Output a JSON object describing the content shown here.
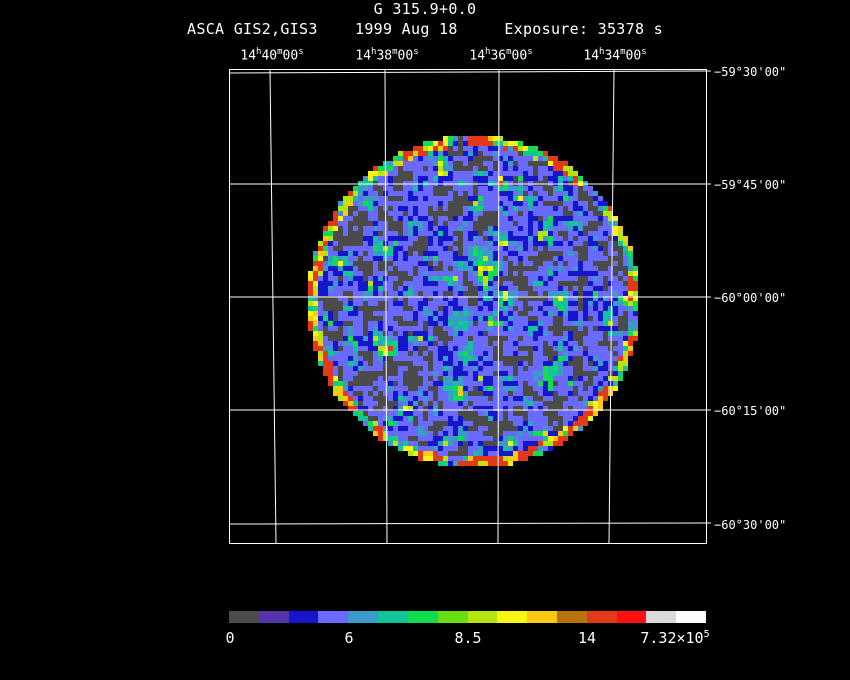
{
  "title": {
    "object": "G 315.9+0.0",
    "instrument": "ASCA GIS2,GIS3",
    "date": "1999 Aug 18",
    "exposure": "Exposure: 35378 s"
  },
  "ra_labels": [
    {
      "h": "14",
      "m": "40",
      "s": "00"
    },
    {
      "h": "14",
      "m": "38",
      "s": "00"
    },
    {
      "h": "14",
      "m": "36",
      "s": "00"
    },
    {
      "h": "14",
      "m": "34",
      "s": "00"
    }
  ],
  "dec_labels": [
    "−59°30'00\"",
    "−59°45'00\"",
    "−60°00'00\"",
    "−60°15'00\"",
    "−60°30'00\""
  ],
  "colorbar": {
    "labels": [
      "0",
      "6",
      "8.5",
      "14"
    ],
    "max_mantissa": "7.32×10",
    "max_exponent": "5",
    "colors": [
      "#4b4b4b",
      "#5533aa",
      "#1515cc",
      "#6a6aff",
      "#3a9ac8",
      "#12c49a",
      "#12dd50",
      "#6ade12",
      "#b4e412",
      "#f6f612",
      "#ffc812",
      "#b8720e",
      "#e23a18",
      "#ff1010",
      "#dadada",
      "#ffffff"
    ]
  }
}
